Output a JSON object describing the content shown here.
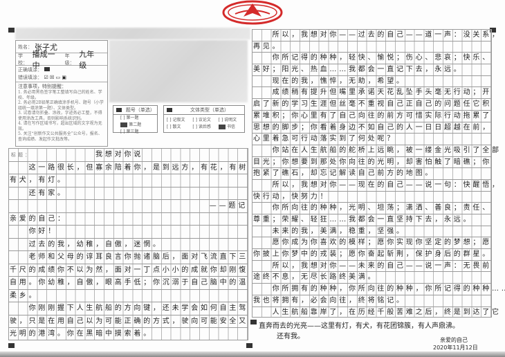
{
  "header": {
    "name_label": "姓名：",
    "name": "张子尤",
    "school_label": "学校：",
    "school": "播成一中",
    "grade_label": "年级：",
    "grade": "九年级",
    "correct_fill_label": "正确填涂：",
    "wrong_fill_label": "错误填涂：",
    "notes_title": "注意事项，特别提醒：",
    "notes": [
      "1. 务必用黑色签字笔工整填写自己的姓名、学校、年级。",
      "2. 务必用2B铅笔正确填涂手机号、题号（小学组统一填涂第一题）、文体类型。",
      "3. 试卷请勿折叠、涂改，字迹务必工整，不得使用涂改工具，否则影响系统识别。",
      "4. 请在写作区域书写，超出区域的文字视为无效。",
      "5. 关注“创新作文公共服务全”公众号，报名、查询成绩、发起作文批改等。"
    ]
  },
  "question_select": {
    "title": "题号（单选）",
    "options": [
      {
        "label": "第一题",
        "selected": false
      },
      {
        "label": "第二题",
        "selected": true
      },
      {
        "label": "第三题",
        "selected": false
      }
    ]
  },
  "genre_select": {
    "title": "文体类型（单选）",
    "options": [
      {
        "label": "记叙文",
        "selected": false
      },
      {
        "label": "议论文",
        "selected": false
      },
      {
        "label": "说明文",
        "selected": false
      },
      {
        "label": "散文",
        "selected": false
      },
      {
        "label": "读后感",
        "selected": false
      },
      {
        "label": "书信",
        "selected": true
      }
    ]
  },
  "essay": {
    "title_label": "标题：",
    "title": "我想对你说",
    "left_lines": [
      {
        "text": "这一路很长，但寡余陪着你，是到远方，有花，有树",
        "indent": true
      },
      {
        "text": "有犬，有灯。",
        "indent": false
      },
      {
        "text": "还有家。",
        "indent": true
      },
      {
        "text": "——题记",
        "indent": false,
        "align": "right"
      },
      {
        "text": "亲爱的自己：",
        "indent": false
      },
      {
        "text": "你好！",
        "indent": true
      },
      {
        "text": "过去的我，幼稚，自傲，迷惘。",
        "indent": true
      },
      {
        "text": "老师和父母的谆耳良言你抛诸脑后，面对飞流直下三",
        "indent": true
      },
      {
        "text": "千尺的成绩你不以为然，面对一丁点小小的成就你却刚愎",
        "indent": false
      },
      {
        "text": "自用。你幼稚，自傲，眼高手低；你沉溺于自己脑中的温",
        "indent": false
      },
      {
        "text": "柔乡。",
        "indent": false
      },
      {
        "text": "你刚刚握下人生航船的方向键，还未学会如何自主驾",
        "indent": true
      },
      {
        "text": "驶，只是在用自己以为可能正确的方式，驶向可能安全又",
        "indent": false
      },
      {
        "text": "光明的港湾。你在黑暗中摸索着。",
        "indent": false
      }
    ],
    "right_lines": [
      {
        "text": "所以，我想对你——过去的自己——道一声：没关系，",
        "indent": true
      },
      {
        "text": "再见。",
        "indent": false
      },
      {
        "text": "你所记得的种种，轻快、愉悦；伤心、悲哀；快乐、",
        "indent": true
      },
      {
        "text": "美好；阳光、热血……我都会一直记下去，永远。",
        "indent": false
      },
      {
        "text": "现在的我，憔悴，无助，希望。",
        "indent": true
      },
      {
        "text": "成绩稍有提升但嘴里承诺天花乱坠手头毫无行动；开",
        "indent": true
      },
      {
        "text": "启了新的学习生涯但丝毫不重视自己正自己的问题任它积",
        "indent": false
      },
      {
        "text": "累堆积；你心里有了自己向往的前方可惜实际行动拖累了",
        "indent": false
      },
      {
        "text": "思想的脚步；你看着身边不如自己的人一日日超越在前，",
        "indent": false
      },
      {
        "text": "心里着急可行动落实到了何处呢？",
        "indent": false
      },
      {
        "text": "你站在人生航船的舵桥上远眺，被一缕金光吸引了全部",
        "indent": true
      },
      {
        "text": "目光；你想要到那处你向往的光明，却害怕触了暗礁；你",
        "indent": false
      },
      {
        "text": "抱紧了礁石，却忘记解读自己前方的地图。",
        "indent": false
      },
      {
        "text": "所以，我想对你——现在的自己——说一句：快醒悟，",
        "indent": true
      },
      {
        "text": "快行动，快努力！",
        "indent": false
      },
      {
        "text": "你所向往的种种，光明、坦荡；潇洒、善良；责任、",
        "indent": true
      },
      {
        "text": "尊重；荣耀、轻狂……我都会一直坚持下去，永远。",
        "indent": false
      },
      {
        "text": "未来的我，美满，稳重，坚强。",
        "indent": true
      },
      {
        "text": "愿你成为你喜欢的模样；愿你实现你坚定的梦想；愿",
        "indent": true
      },
      {
        "text": "你披上你梦中的戎装；愿你奋起斩荆，保护身后的群星。",
        "indent": false
      },
      {
        "text": "所以，我想对你——未来的自己——说一声：无畏前",
        "indent": true
      },
      {
        "text": "途终不息，无尽长路终美满。",
        "indent": false
      },
      {
        "text": "你所拥有的种种，你所向往的种种，你所记得的种种……",
        "indent": true
      },
      {
        "text": "我也将拥有，必会向往，终将铭记。",
        "indent": false
      },
      {
        "text": "人生航船靠岸了，在历经千般苦难之后，终是到达了它",
        "indent": true
      }
    ],
    "free_lines": [
      "直奔而去的光亮——这里有灯，有犬，有花团锦簇，有人声鼎沸。",
      "还有我。"
    ],
    "signature": "亲爱的自己",
    "date": "2020年11月12日"
  },
  "colors": {
    "logo": "#d42a2a",
    "grid": "#b5b5b5",
    "ink": "#1f1f1f"
  }
}
